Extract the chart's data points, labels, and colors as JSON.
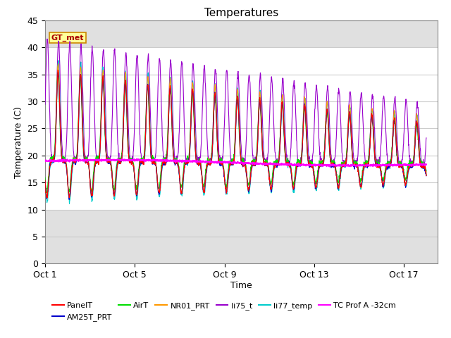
{
  "title": "Temperatures",
  "ylabel": "Temperature (C)",
  "xlabel": "Time",
  "xlim_days": [
    0,
    17.5
  ],
  "ylim": [
    0,
    45
  ],
  "yticks": [
    0,
    5,
    10,
    15,
    20,
    25,
    30,
    35,
    40,
    45
  ],
  "xtick_positions": [
    0,
    4,
    8,
    12,
    16
  ],
  "xtick_labels": [
    "Oct 1",
    "Oct 5",
    "Oct 9",
    "Oct 13",
    "Oct 17"
  ],
  "series_colors": {
    "PanelT": "#ff0000",
    "AM25T_PRT": "#0000cc",
    "AirT": "#00dd00",
    "NR01_PRT": "#ff9900",
    "li75_t": "#9900cc",
    "li77_temp": "#00cccc",
    "TC Prof A -32cm": "#ff00ff"
  },
  "annotation_text": "GT_met",
  "annotation_color": "#aa0000",
  "annotation_bg": "#ffff99",
  "annotation_border": "#cc8800",
  "gray_band_color": "#e0e0e0",
  "white_band_lo": 10,
  "white_band_hi": 40,
  "num_days": 17,
  "pts_per_day": 96,
  "base_temp": 19.0,
  "tc_prof_mean": 19.0,
  "tc_prof_slope": -0.04
}
